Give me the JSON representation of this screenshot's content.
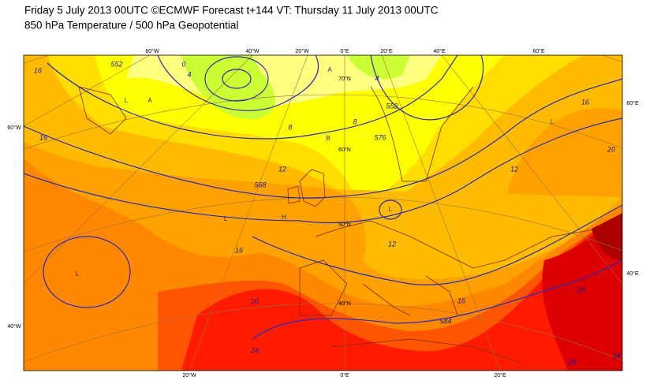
{
  "header": {
    "title": "Friday 5 July 2013 00UTC ©ECMWF Forecast t+144 VT: Thursday 11 July 2013 00UTC",
    "subtitle": "850 hPa Temperature / 500 hPa Geopotential"
  },
  "map": {
    "top_labels": [
      "60°W",
      "40°W",
      "20°W",
      "0°E",
      "20°E",
      "40°E",
      "60°E"
    ],
    "bottom_labels": [
      "20°W",
      "0°E",
      "20°E"
    ],
    "left_labels": [
      "60°W",
      "40°W"
    ],
    "right_labels": [
      "60°E",
      "40°E"
    ],
    "lat_labels": [
      "70°N",
      "60°N",
      "50°N",
      "40°N"
    ],
    "temperature_labels": [
      "16",
      "16",
      "12",
      "12",
      "12",
      "16",
      "20",
      "24",
      "16",
      "24",
      "16",
      "20",
      "28",
      "24",
      "8",
      "8",
      "4",
      "0",
      "4"
    ],
    "geopotential_labels": [
      "552",
      "568",
      "576",
      "584",
      "552"
    ],
    "centre_labels": [
      "L",
      "L",
      "L",
      "L",
      "L",
      "H",
      "A",
      "A",
      "B"
    ]
  }
}
